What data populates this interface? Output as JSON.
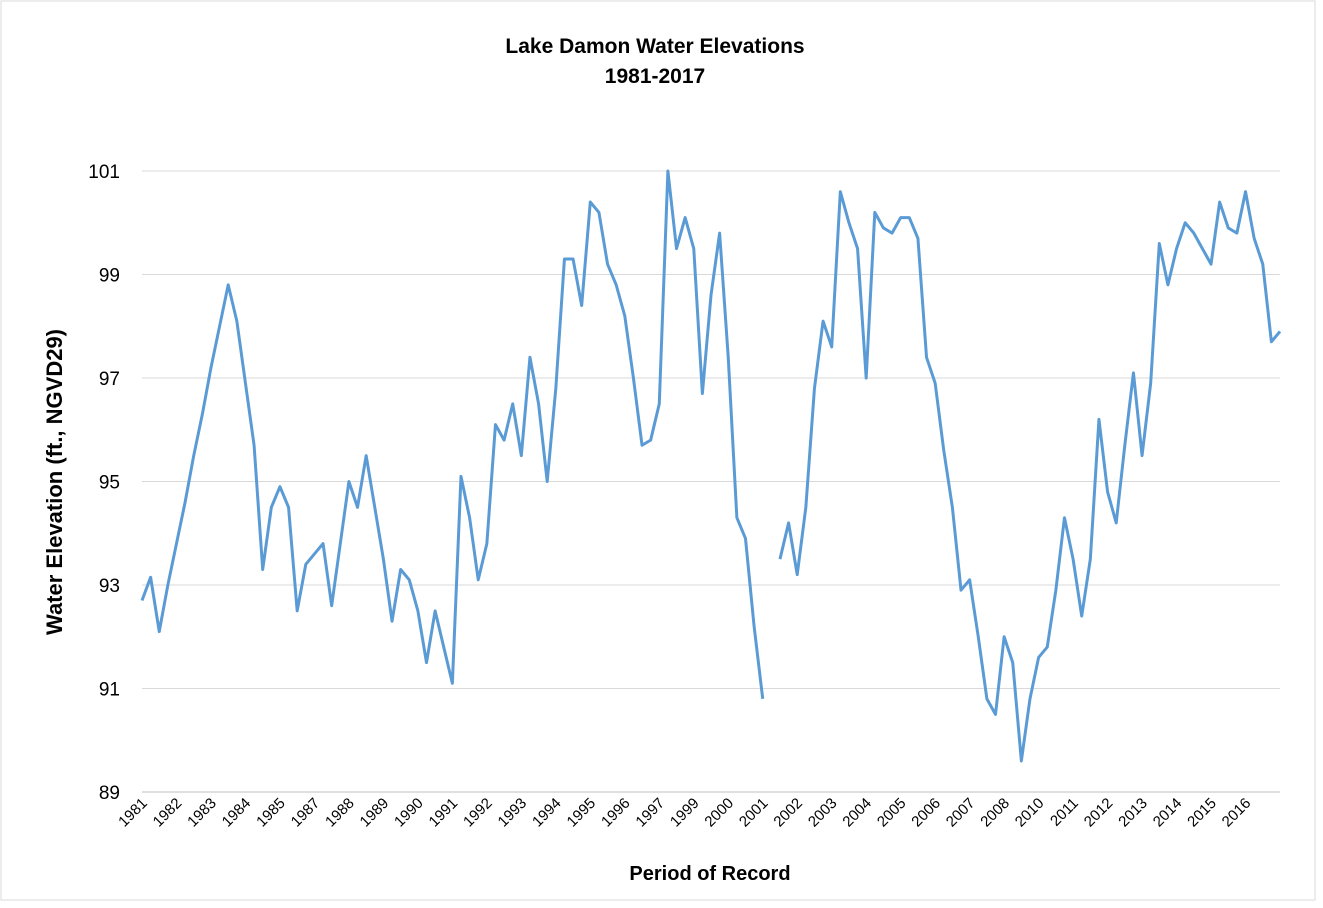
{
  "chart_data": {
    "type": "line",
    "title": "Lake Damon Water Elevations",
    "subtitle": "1981-2017",
    "x_label": "Period of Record",
    "y_label": "Water Elevation (ft., NGVD29)",
    "categories": [
      "1981",
      null,
      null,
      null,
      "1982",
      null,
      null,
      null,
      "1983",
      null,
      null,
      null,
      "1984",
      null,
      null,
      null,
      "1985",
      null,
      null,
      null,
      "1987",
      null,
      null,
      null,
      "1988",
      null,
      null,
      null,
      "1989",
      null,
      null,
      null,
      "1990",
      null,
      null,
      null,
      "1991",
      null,
      null,
      null,
      "1992",
      null,
      null,
      null,
      "1993",
      null,
      null,
      null,
      "1994",
      null,
      null,
      null,
      "1995",
      null,
      null,
      null,
      "1996",
      null,
      null,
      null,
      "1997",
      null,
      null,
      null,
      "1999",
      null,
      null,
      null,
      "2000",
      null,
      null,
      null,
      "2001",
      null,
      null,
      null,
      "2002",
      null,
      null,
      null,
      "2003",
      null,
      null,
      null,
      "2004",
      null,
      null,
      null,
      "2005",
      null,
      null,
      null,
      "2006",
      null,
      null,
      null,
      "2007",
      null,
      null,
      null,
      "2008",
      null,
      null,
      null,
      "2010",
      null,
      null,
      null,
      "2011",
      null,
      null,
      null,
      "2012",
      null,
      null,
      null,
      "2013",
      null,
      null,
      null,
      "2014",
      null,
      null,
      null,
      "2015",
      null,
      null,
      null,
      "2016",
      null,
      null,
      null,
      null
    ],
    "series": [
      {
        "name": "Water Elevation",
        "color": "#5b9bd5",
        "values": [
          92.7,
          93.15,
          92.1,
          93.0,
          93.8,
          94.6,
          95.5,
          96.3,
          97.2,
          98.0,
          98.8,
          98.1,
          96.9,
          95.7,
          93.3,
          94.5,
          94.9,
          94.5,
          92.5,
          93.4,
          93.6,
          93.8,
          92.6,
          93.8,
          95.0,
          94.5,
          95.5,
          94.5,
          93.5,
          92.3,
          93.3,
          93.1,
          92.5,
          91.5,
          92.5,
          91.8,
          91.1,
          95.1,
          94.3,
          93.1,
          93.8,
          96.1,
          95.8,
          96.5,
          95.5,
          97.4,
          96.5,
          95.0,
          96.8,
          99.3,
          99.3,
          98.4,
          100.4,
          100.2,
          99.2,
          98.8,
          98.2,
          97.0,
          95.7,
          95.8,
          96.5,
          101.0,
          99.5,
          100.1,
          99.5,
          96.7,
          98.6,
          99.8,
          97.4,
          94.3,
          93.9,
          92.2,
          90.8,
          null,
          93.5,
          94.2,
          93.2,
          94.5,
          96.8,
          98.1,
          97.6,
          100.6,
          100.0,
          99.5,
          97.0,
          100.2,
          99.9,
          99.8,
          100.1,
          100.1,
          99.7,
          97.4,
          96.9,
          95.6,
          94.5,
          92.9,
          93.1,
          92.0,
          90.8,
          90.5,
          92.0,
          91.5,
          89.6,
          90.8,
          91.6,
          91.8,
          92.9,
          94.3,
          93.5,
          92.4,
          93.5,
          96.2,
          94.8,
          94.2,
          95.7,
          97.1,
          95.5,
          96.9,
          99.6,
          98.8,
          99.5,
          100.0,
          99.8,
          99.5,
          99.2,
          100.4,
          99.9,
          99.8,
          100.6,
          99.7,
          99.2,
          97.7,
          97.9
        ]
      }
    ],
    "ylim": [
      89,
      101
    ],
    "yticks": [
      89,
      91,
      93,
      95,
      97,
      99,
      101
    ],
    "grid": true
  }
}
